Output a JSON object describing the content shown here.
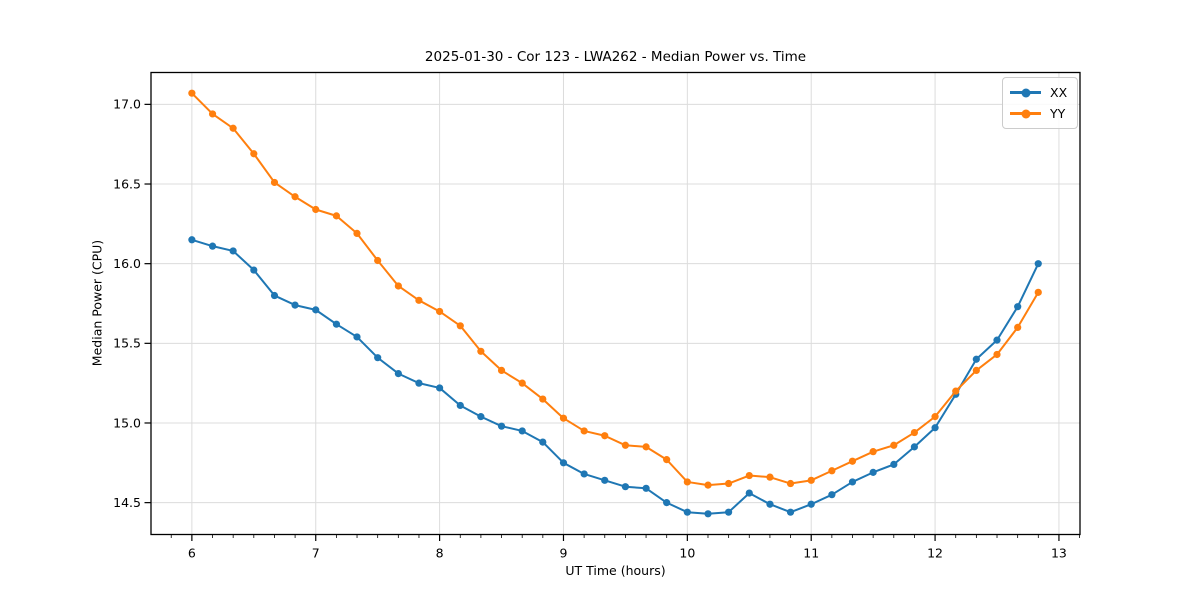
{
  "chart_data": {
    "type": "line",
    "title": "2025-01-30 - Cor 123 - LWA262 - Median Power vs. Time",
    "xlabel": "UT Time (hours)",
    "ylabel": "Median Power (CPU)",
    "xlim": [
      5.67,
      13.17
    ],
    "ylim": [
      14.3,
      17.2
    ],
    "xticks": [
      6,
      7,
      8,
      9,
      10,
      11,
      12,
      13
    ],
    "xtick_labels": [
      "6",
      "7",
      "8",
      "9",
      "10",
      "11",
      "12",
      "13"
    ],
    "yticks": [
      14.5,
      15.0,
      15.5,
      16.0,
      16.5,
      17.0
    ],
    "ytick_labels": [
      "14.5",
      "15.0",
      "15.5",
      "16.0",
      "16.5",
      "17.0"
    ],
    "x_minor_step": 0.166667,
    "grid": true,
    "legend_position": "upper right",
    "x": [
      6.0,
      6.167,
      6.333,
      6.5,
      6.667,
      6.833,
      7.0,
      7.167,
      7.333,
      7.5,
      7.667,
      7.833,
      8.0,
      8.167,
      8.333,
      8.5,
      8.667,
      8.833,
      9.0,
      9.167,
      9.333,
      9.5,
      9.667,
      9.833,
      10.0,
      10.167,
      10.333,
      10.5,
      10.667,
      10.833,
      11.0,
      11.167,
      11.333,
      11.5,
      11.667,
      11.833,
      12.0,
      12.167,
      12.333,
      12.5,
      12.667,
      12.833
    ],
    "series": [
      {
        "name": "XX",
        "color": "#1f77b4",
        "values": [
          16.15,
          16.11,
          16.08,
          15.96,
          15.8,
          15.74,
          15.71,
          15.62,
          15.54,
          15.41,
          15.31,
          15.25,
          15.22,
          15.11,
          15.04,
          14.98,
          14.95,
          14.88,
          14.75,
          14.68,
          14.64,
          14.6,
          14.59,
          14.5,
          14.44,
          14.43,
          14.44,
          14.56,
          14.49,
          14.44,
          14.49,
          14.55,
          14.63,
          14.69,
          14.74,
          14.85,
          14.97,
          15.18,
          15.4,
          15.52,
          15.73,
          16.0
        ]
      },
      {
        "name": "YY",
        "color": "#ff7f0e",
        "values": [
          17.07,
          16.94,
          16.85,
          16.69,
          16.51,
          16.42,
          16.34,
          16.3,
          16.19,
          16.02,
          15.86,
          15.77,
          15.7,
          15.61,
          15.45,
          15.33,
          15.25,
          15.15,
          15.03,
          14.95,
          14.92,
          14.86,
          14.85,
          14.77,
          14.63,
          14.61,
          14.62,
          14.67,
          14.66,
          14.62,
          14.64,
          14.7,
          14.76,
          14.82,
          14.86,
          14.94,
          15.04,
          15.2,
          15.33,
          15.43,
          15.6,
          15.82
        ]
      }
    ],
    "colors": {
      "background": "#ffffff",
      "grid": "#dcdcdc",
      "axis": "#000000",
      "tick_text": "#000000"
    }
  }
}
